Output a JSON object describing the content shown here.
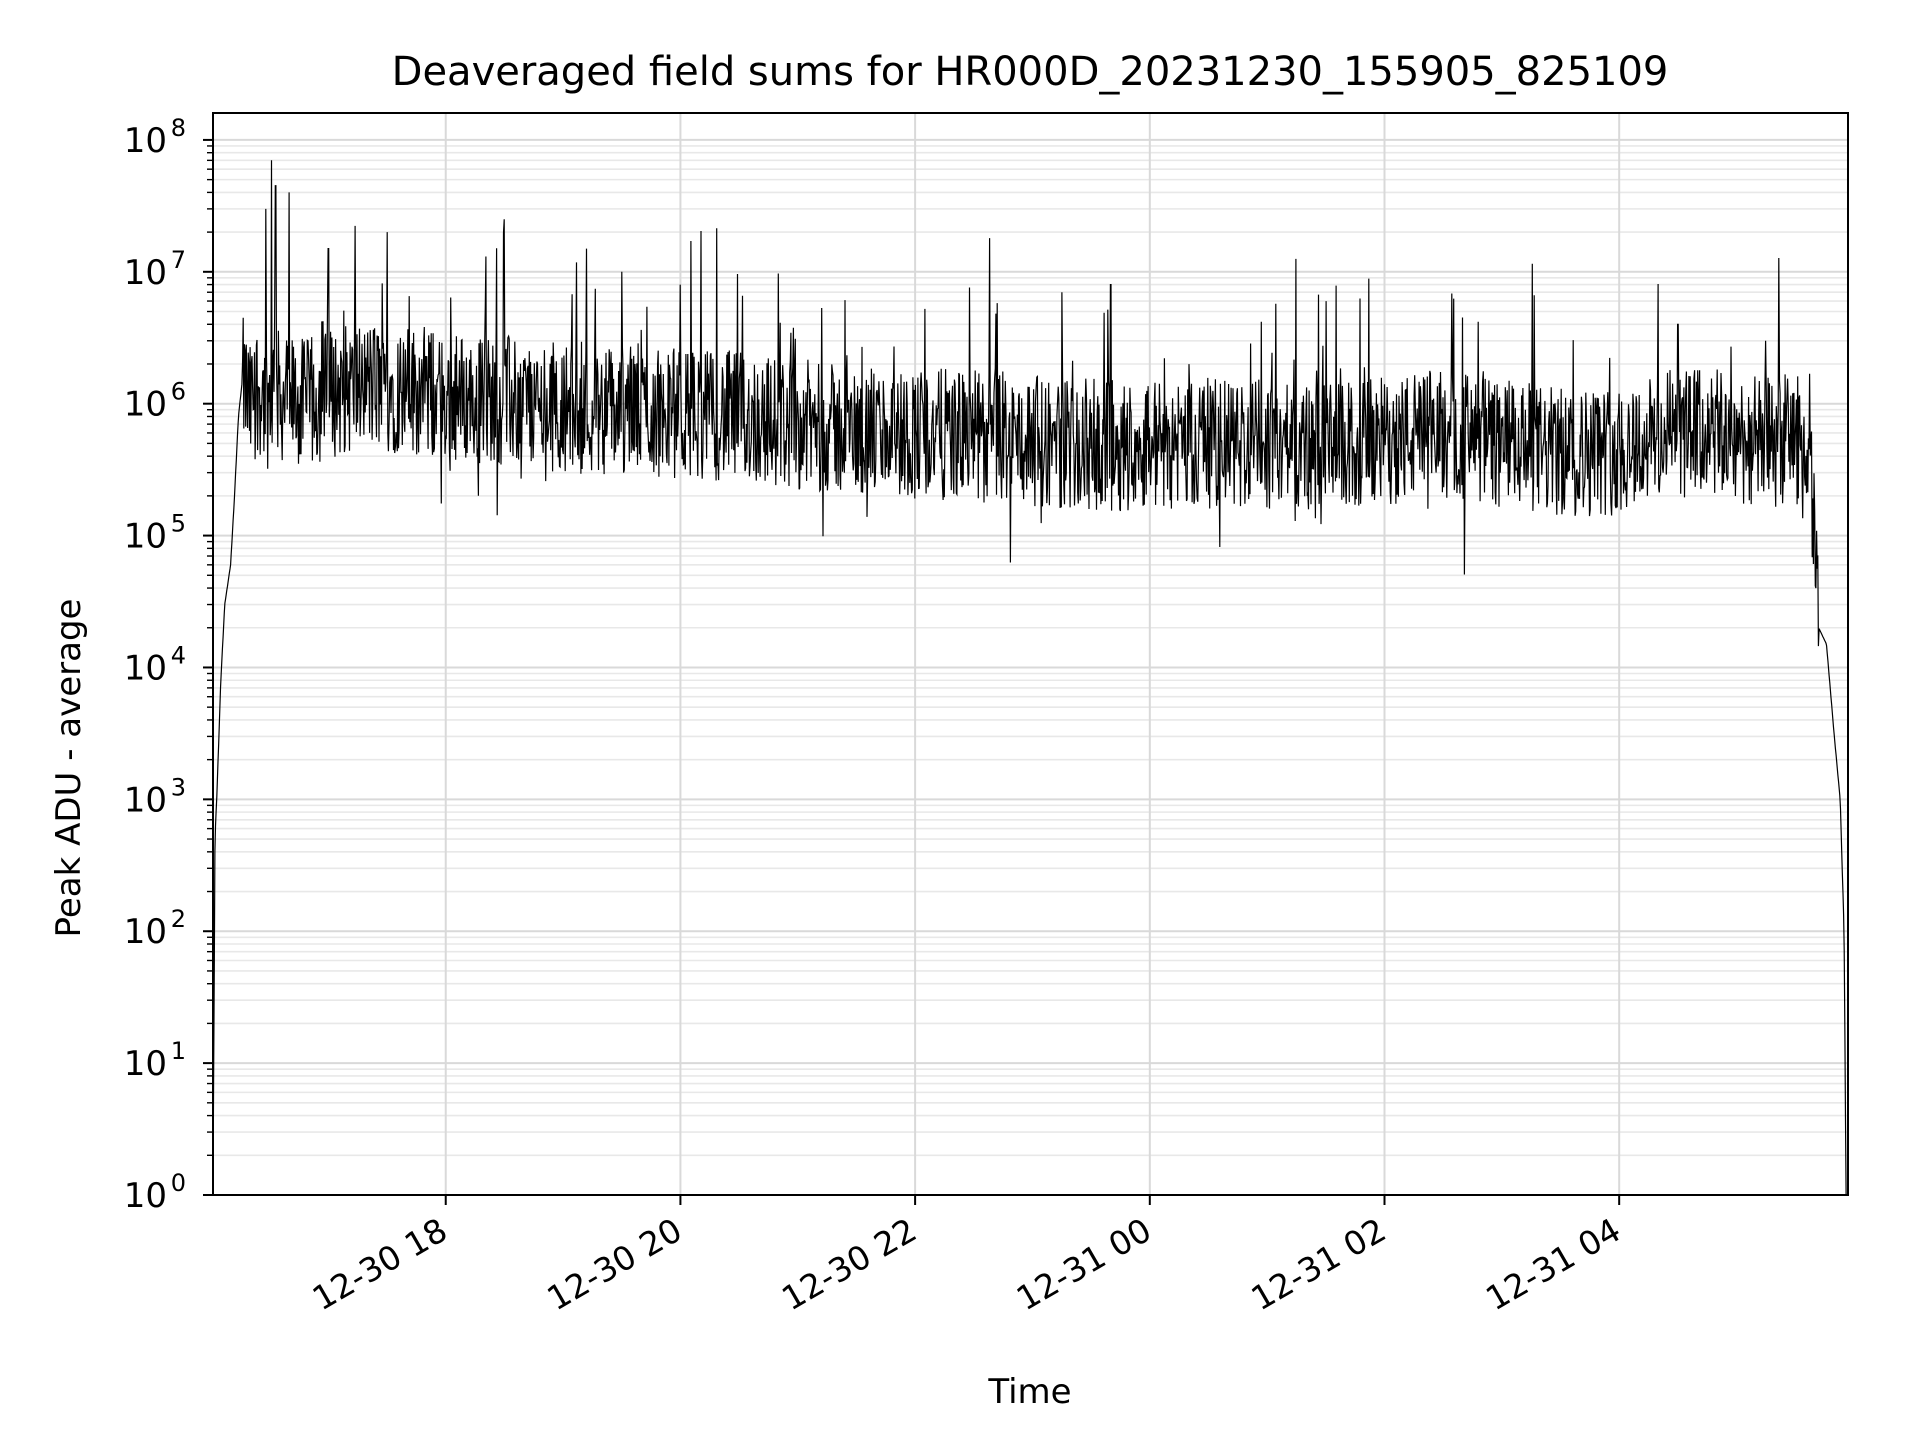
{
  "chart_data": {
    "type": "line",
    "title": "Deaveraged field sums for HR000D_20231230_155905_825109",
    "xlabel": "Time",
    "ylabel": "Peak ADU - average",
    "yscale": "log",
    "ylim": [
      1,
      160000000
    ],
    "xlim": [
      "2023-12-30 16:01",
      "2023-12-31 05:57"
    ],
    "x_ticks": [
      {
        "label": "12-30 18",
        "x": "2023-12-30 18:00"
      },
      {
        "label": "12-30 20",
        "x": "2023-12-30 20:00"
      },
      {
        "label": "12-30 22",
        "x": "2023-12-30 22:00"
      },
      {
        "label": "12-31 00",
        "x": "2023-12-31 00:00"
      },
      {
        "label": "12-31 02",
        "x": "2023-12-31 02:00"
      },
      {
        "label": "12-31 04",
        "x": "2023-12-31 04:00"
      }
    ],
    "y_ticks": [
      {
        "base": "10",
        "exp": "0",
        "value": 1
      },
      {
        "base": "10",
        "exp": "1",
        "value": 10
      },
      {
        "base": "10",
        "exp": "2",
        "value": 100
      },
      {
        "base": "10",
        "exp": "3",
        "value": 1000
      },
      {
        "base": "10",
        "exp": "4",
        "value": 10000
      },
      {
        "base": "10",
        "exp": "5",
        "value": 100000
      },
      {
        "base": "10",
        "exp": "6",
        "value": 1000000
      },
      {
        "base": "10",
        "exp": "7",
        "value": 10000000
      },
      {
        "base": "10",
        "exp": "8",
        "value": 100000000
      }
    ],
    "grid": true,
    "line_color": "#000000",
    "series": [
      {
        "x": [
          "2023-12-30 16:01",
          "2023-12-30 16:02",
          "2023-12-30 16:03",
          "2023-12-30 16:05",
          "2023-12-30 16:07",
          "2023-12-30 16:10",
          "2023-12-30 16:12",
          "2023-12-30 16:14",
          "2023-12-30 16:16",
          "2023-12-30 16:18",
          "2023-12-30 16:20",
          "2023-12-30 16:23",
          "2023-12-30 16:26",
          "2023-12-30 16:29",
          "2023-12-30 16:32",
          "2023-12-30 16:36",
          "2023-12-30 16:40",
          "2023-12-30 16:45",
          "2023-12-30 16:50",
          "2023-12-30 16:55",
          "2023-12-30 17:00",
          "2023-12-30 17:10",
          "2023-12-30 17:20",
          "2023-12-30 17:30",
          "2023-12-30 17:40",
          "2023-12-30 17:50",
          "2023-12-30 18:00",
          "2023-12-30 18:20",
          "2023-12-30 18:40",
          "2023-12-30 19:00",
          "2023-12-30 19:20",
          "2023-12-30 19:40",
          "2023-12-30 20:00",
          "2023-12-30 20:30",
          "2023-12-30 21:00",
          "2023-12-30 21:30",
          "2023-12-30 22:00",
          "2023-12-30 22:20",
          "2023-12-30 22:40",
          "2023-12-30 23:00",
          "2023-12-30 23:20",
          "2023-12-30 23:40",
          "2023-12-31 00:00",
          "2023-12-31 00:30",
          "2023-12-31 01:00",
          "2023-12-31 01:30",
          "2023-12-31 02:00",
          "2023-12-31 02:30",
          "2023-12-31 03:00",
          "2023-12-31 03:30",
          "2023-12-31 04:00",
          "2023-12-31 04:20",
          "2023-12-31 04:40",
          "2023-12-31 05:00",
          "2023-12-31 05:20",
          "2023-12-31 05:30",
          "2023-12-31 05:34",
          "2023-12-31 05:38",
          "2023-12-31 05:42",
          "2023-12-31 05:46",
          "2023-12-31 05:50",
          "2023-12-31 05:53",
          "2023-12-31 05:55",
          "2023-12-31 05:56"
        ],
        "y": [
          1,
          500,
          1100,
          8000,
          30000,
          60000,
          200000,
          800000,
          1500000,
          1200000,
          900000,
          1400000,
          1200000,
          1000000,
          1300000,
          1100000,
          1100000,
          1000000,
          1000000,
          1100000,
          1200000,
          1300000,
          1400000,
          1300000,
          1300000,
          1200000,
          1100000,
          1100000,
          1000000,
          950000,
          900000,
          900000,
          850000,
          800000,
          700000,
          600000,
          600000,
          580000,
          560000,
          520000,
          500000,
          480000,
          500000,
          500000,
          480000,
          450000,
          520000,
          600000,
          500000,
          420000,
          450000,
          550000,
          600000,
          550000,
          500000,
          600000,
          400000,
          300000,
          20000,
          15000,
          3000,
          1000,
          100,
          1
        ],
        "peaks_x": [
          "2023-12-30 16:28",
          "2023-12-30 16:31",
          "2023-12-30 16:33",
          "2023-12-30 16:40",
          "2023-12-30 17:00",
          "2023-12-30 17:30",
          "2023-12-30 18:30",
          "2023-12-30 19:12",
          "2023-12-30 19:30",
          "2023-12-30 20:00",
          "2023-12-30 22:38",
          "2023-12-30 23:15",
          "2023-12-30 23:40",
          "2023-12-31 01:30",
          "2023-12-31 02:40",
          "2023-12-31 04:30",
          "2023-12-31 05:15"
        ],
        "peaks_y": [
          30000000,
          70000000,
          45000000,
          40000000,
          15000000,
          20000000,
          25000000,
          15000000,
          10000000,
          8000000,
          18000000,
          7000000,
          8000000,
          6000000,
          4500000,
          4000000,
          3000000
        ]
      }
    ]
  }
}
